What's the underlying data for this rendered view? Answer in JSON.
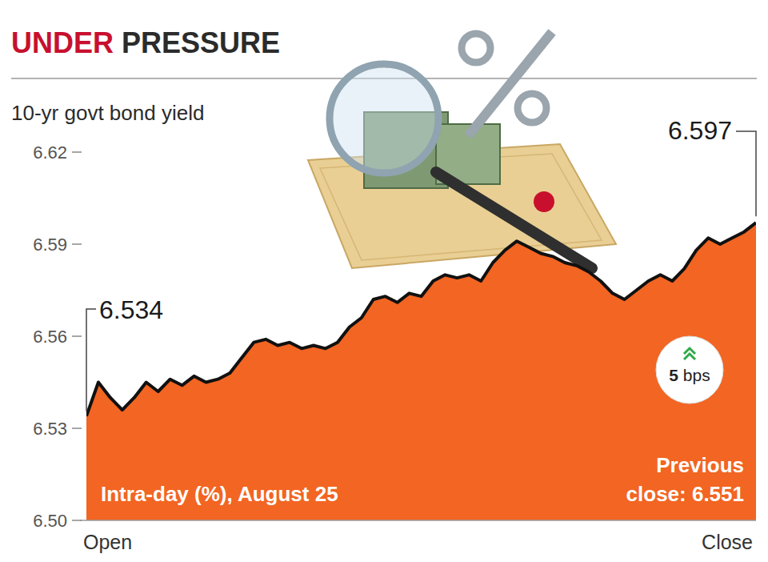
{
  "chart_data": {
    "type": "area",
    "title": "UNDER PRESSURE",
    "subtitle": "10-yr govt bond yield",
    "categories": [
      "Open",
      null,
      null,
      null,
      null,
      null,
      null,
      null,
      null,
      null,
      null,
      null,
      null,
      null,
      null,
      null,
      null,
      null,
      null,
      null,
      null,
      null,
      null,
      null,
      null,
      null,
      null,
      null,
      null,
      null,
      null,
      null,
      null,
      null,
      null,
      null,
      null,
      null,
      null,
      null,
      null,
      null,
      null,
      null,
      null,
      null,
      null,
      null,
      null,
      null,
      null,
      null,
      null,
      null,
      null,
      null,
      "Close"
    ],
    "values": [
      6.534,
      6.545,
      6.54,
      6.536,
      6.54,
      6.545,
      6.542,
      6.546,
      6.544,
      6.547,
      6.545,
      6.546,
      6.548,
      6.553,
      6.558,
      6.559,
      6.557,
      6.558,
      6.556,
      6.557,
      6.556,
      6.558,
      6.563,
      6.566,
      6.572,
      6.573,
      6.571,
      6.574,
      6.573,
      6.578,
      6.58,
      6.579,
      6.58,
      6.578,
      6.584,
      6.588,
      6.591,
      6.589,
      6.587,
      6.586,
      6.584,
      6.583,
      6.581,
      6.578,
      6.574,
      6.572,
      6.575,
      6.578,
      6.58,
      6.578,
      6.582,
      6.588,
      6.592,
      6.59,
      6.592,
      6.594,
      6.597
    ],
    "color": "#f26522",
    "ylim": [
      6.5,
      6.62
    ],
    "yticks": [
      {
        "value": 6.5,
        "label": "6.50"
      },
      6.53,
      6.56,
      6.59,
      6.62
    ],
    "grid": false,
    "annotations": [
      "6.534",
      "6.597",
      "5 bps",
      "Intra-day (%), August 25",
      "Previous close: 6.551"
    ]
  }
}
